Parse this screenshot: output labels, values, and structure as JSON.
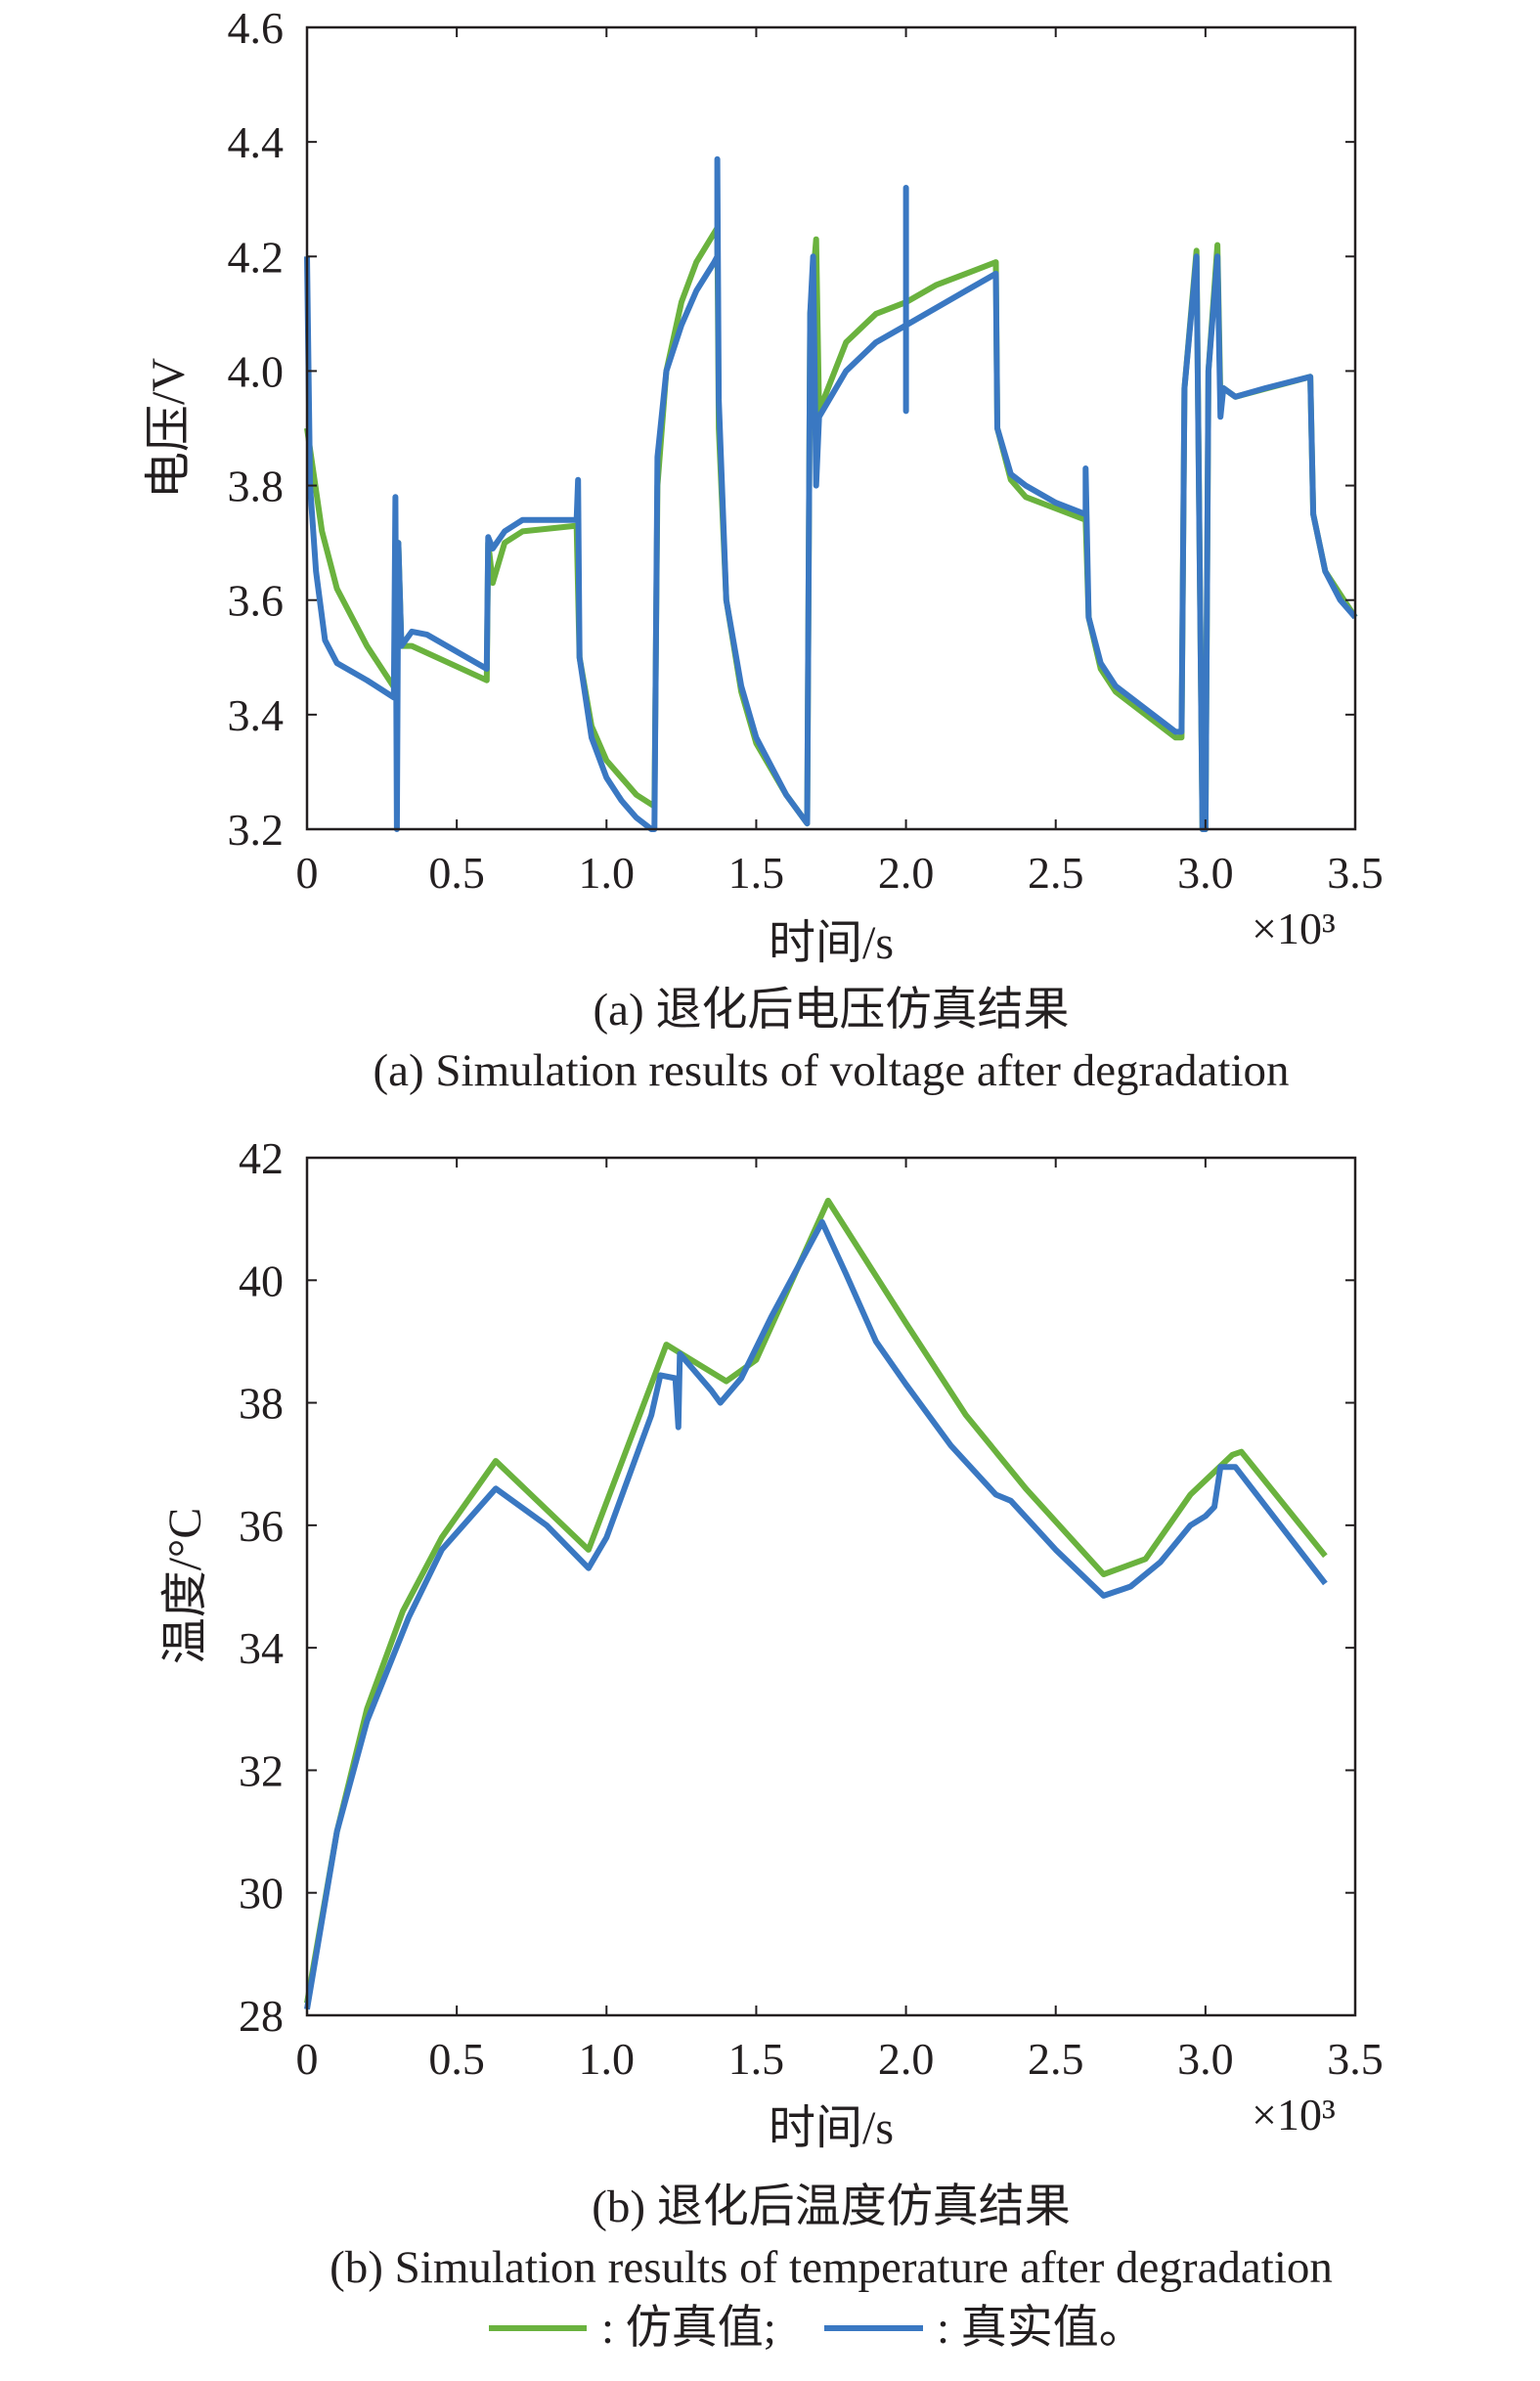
{
  "colors": {
    "simulated": "#6ab23e",
    "real": "#3a78c2",
    "axis": "#231f20"
  },
  "legend": {
    "simulated_label": ": 仿真值;",
    "real_label": ": 真实值。"
  },
  "chart_data": [
    {
      "type": "line",
      "title": "(a) 退化后电压仿真结果",
      "title_en": "(a) Simulation results of voltage after degradation",
      "xlabel": "时间/s",
      "x_multiplier": "×10³",
      "ylabel": "电压/V",
      "xlim": [
        0,
        3.5
      ],
      "ylim": [
        3.2,
        4.6
      ],
      "xticks": [
        "0",
        "0.5",
        "1.0",
        "1.5",
        "2.0",
        "2.5",
        "3.0",
        "3.5"
      ],
      "yticks": [
        "3.2",
        "3.4",
        "3.6",
        "3.8",
        "4.0",
        "4.2",
        "4.4",
        "4.6"
      ],
      "grid": false,
      "series": [
        {
          "name": "仿真值",
          "color_key": "simulated",
          "points": [
            [
              0,
              3.9
            ],
            [
              0.05,
              3.72
            ],
            [
              0.1,
              3.62
            ],
            [
              0.2,
              3.52
            ],
            [
              0.3,
              3.44
            ],
            [
              0.305,
              3.7
            ],
            [
              0.315,
              3.52
            ],
            [
              0.35,
              3.52
            ],
            [
              0.6,
              3.46
            ],
            [
              0.605,
              3.7
            ],
            [
              0.62,
              3.63
            ],
            [
              0.66,
              3.7
            ],
            [
              0.72,
              3.72
            ],
            [
              0.9,
              3.73
            ],
            [
              0.91,
              3.5
            ],
            [
              0.95,
              3.38
            ],
            [
              1.0,
              3.32
            ],
            [
              1.1,
              3.26
            ],
            [
              1.16,
              3.24
            ],
            [
              1.17,
              3.8
            ],
            [
              1.2,
              4.0
            ],
            [
              1.25,
              4.12
            ],
            [
              1.3,
              4.19
            ],
            [
              1.37,
              4.25
            ],
            [
              1.375,
              3.9
            ],
            [
              1.4,
              3.6
            ],
            [
              1.45,
              3.44
            ],
            [
              1.5,
              3.35
            ],
            [
              1.6,
              3.26
            ],
            [
              1.67,
              3.21
            ],
            [
              1.68,
              4.1
            ],
            [
              1.7,
              4.23
            ],
            [
              1.71,
              3.93
            ],
            [
              1.8,
              4.05
            ],
            [
              1.9,
              4.1
            ],
            [
              2.0,
              4.12
            ],
            [
              2.1,
              4.15
            ],
            [
              2.2,
              4.17
            ],
            [
              2.3,
              4.19
            ],
            [
              2.305,
              3.9
            ],
            [
              2.35,
              3.81
            ],
            [
              2.4,
              3.78
            ],
            [
              2.5,
              3.76
            ],
            [
              2.6,
              3.74
            ],
            [
              2.61,
              3.57
            ],
            [
              2.65,
              3.48
            ],
            [
              2.7,
              3.44
            ],
            [
              2.8,
              3.4
            ],
            [
              2.9,
              3.36
            ],
            [
              2.92,
              3.36
            ],
            [
              2.93,
              3.97
            ],
            [
              2.97,
              4.21
            ],
            [
              2.99,
              3.2
            ],
            [
              3.0,
              3.2
            ],
            [
              3.01,
              4.0
            ],
            [
              3.04,
              4.22
            ],
            [
              3.05,
              3.95
            ],
            [
              3.06,
              3.97
            ],
            [
              3.1,
              3.955
            ],
            [
              3.35,
              3.99
            ],
            [
              3.36,
              3.75
            ],
            [
              3.4,
              3.65
            ],
            [
              3.5,
              3.57
            ]
          ]
        },
        {
          "name": "真实值",
          "color_key": "real",
          "points": [
            [
              0,
              4.2
            ],
            [
              0.01,
              3.8
            ],
            [
              0.03,
              3.65
            ],
            [
              0.06,
              3.53
            ],
            [
              0.1,
              3.49
            ],
            [
              0.2,
              3.46
            ],
            [
              0.29,
              3.43
            ],
            [
              0.295,
              3.78
            ],
            [
              0.3,
              3.2
            ],
            [
              0.305,
              3.7
            ],
            [
              0.315,
              3.52
            ],
            [
              0.35,
              3.545
            ],
            [
              0.4,
              3.54
            ],
            [
              0.6,
              3.48
            ],
            [
              0.605,
              3.71
            ],
            [
              0.62,
              3.69
            ],
            [
              0.66,
              3.72
            ],
            [
              0.72,
              3.74
            ],
            [
              0.9,
              3.74
            ],
            [
              0.905,
              3.81
            ],
            [
              0.91,
              3.5
            ],
            [
              0.95,
              3.36
            ],
            [
              1.0,
              3.29
            ],
            [
              1.05,
              3.25
            ],
            [
              1.1,
              3.22
            ],
            [
              1.15,
              3.2
            ],
            [
              1.16,
              3.2
            ],
            [
              1.17,
              3.85
            ],
            [
              1.2,
              4.0
            ],
            [
              1.25,
              4.08
            ],
            [
              1.3,
              4.14
            ],
            [
              1.36,
              4.19
            ],
            [
              1.37,
              4.2
            ],
            [
              1.37,
              4.37
            ],
            [
              1.375,
              3.95
            ],
            [
              1.4,
              3.6
            ],
            [
              1.45,
              3.45
            ],
            [
              1.5,
              3.36
            ],
            [
              1.6,
              3.26
            ],
            [
              1.67,
              3.21
            ],
            [
              1.68,
              4.1
            ],
            [
              1.69,
              4.2
            ],
            [
              1.7,
              3.8
            ],
            [
              1.71,
              3.92
            ],
            [
              1.8,
              4.0
            ],
            [
              1.9,
              4.05
            ],
            [
              2.0,
              4.08
            ],
            [
              2.0,
              4.32
            ],
            [
              2.0,
              3.93
            ],
            [
              2.0,
              4.08
            ],
            [
              2.1,
              4.11
            ],
            [
              2.2,
              4.14
            ],
            [
              2.3,
              4.17
            ],
            [
              2.305,
              3.9
            ],
            [
              2.35,
              3.82
            ],
            [
              2.4,
              3.8
            ],
            [
              2.5,
              3.77
            ],
            [
              2.6,
              3.75
            ],
            [
              2.6,
              3.83
            ],
            [
              2.61,
              3.57
            ],
            [
              2.65,
              3.49
            ],
            [
              2.7,
              3.45
            ],
            [
              2.8,
              3.41
            ],
            [
              2.9,
              3.37
            ],
            [
              2.92,
              3.37
            ],
            [
              2.93,
              3.97
            ],
            [
              2.97,
              4.2
            ],
            [
              2.99,
              3.2
            ],
            [
              3.0,
              3.2
            ],
            [
              3.01,
              4.0
            ],
            [
              3.04,
              4.2
            ],
            [
              3.05,
              3.92
            ],
            [
              3.06,
              3.97
            ],
            [
              3.1,
              3.955
            ],
            [
              3.2,
              3.97
            ],
            [
              3.35,
              3.99
            ],
            [
              3.36,
              3.75
            ],
            [
              3.4,
              3.65
            ],
            [
              3.45,
              3.6
            ],
            [
              3.5,
              3.57
            ]
          ]
        }
      ]
    },
    {
      "type": "line",
      "title": "(b) 退化后温度仿真结果",
      "title_en": "(b) Simulation results of temperature after degradation",
      "xlabel": "时间/s",
      "x_multiplier": "×10³",
      "ylabel": "温度/°C",
      "xlim": [
        0,
        3.5
      ],
      "ylim": [
        28,
        42
      ],
      "xticks": [
        "0",
        "0.5",
        "1.0",
        "1.5",
        "2.0",
        "2.5",
        "3.0",
        "3.5"
      ],
      "yticks": [
        "28",
        "30",
        "32",
        "34",
        "36",
        "38",
        "40",
        "42"
      ],
      "grid": false,
      "series": [
        {
          "name": "仿真值",
          "color_key": "simulated",
          "points": [
            [
              0,
              28.2
            ],
            [
              0.1,
              31
            ],
            [
              0.2,
              33
            ],
            [
              0.32,
              34.6
            ],
            [
              0.45,
              35.8
            ],
            [
              0.63,
              37.05
            ],
            [
              0.94,
              35.6
            ],
            [
              1.2,
              38.95
            ],
            [
              1.25,
              38.8
            ],
            [
              1.4,
              38.35
            ],
            [
              1.5,
              38.7
            ],
            [
              1.74,
              41.3
            ],
            [
              2.0,
              39.3
            ],
            [
              2.2,
              37.8
            ],
            [
              2.4,
              36.6
            ],
            [
              2.66,
              35.2
            ],
            [
              2.8,
              35.45
            ],
            [
              2.95,
              36.5
            ],
            [
              3.09,
              37.15
            ],
            [
              3.12,
              37.2
            ],
            [
              3.4,
              35.5
            ]
          ]
        },
        {
          "name": "真实值",
          "color_key": "real",
          "points": [
            [
              0,
              28.1
            ],
            [
              0.1,
              31
            ],
            [
              0.2,
              32.8
            ],
            [
              0.34,
              34.5
            ],
            [
              0.45,
              35.6
            ],
            [
              0.63,
              36.6
            ],
            [
              0.8,
              36.0
            ],
            [
              0.94,
              35.3
            ],
            [
              1.0,
              35.8
            ],
            [
              1.15,
              37.8
            ],
            [
              1.18,
              38.45
            ],
            [
              1.23,
              38.4
            ],
            [
              1.24,
              37.6
            ],
            [
              1.245,
              38.8
            ],
            [
              1.35,
              38.2
            ],
            [
              1.38,
              38.0
            ],
            [
              1.45,
              38.4
            ],
            [
              1.55,
              39.4
            ],
            [
              1.72,
              40.95
            ],
            [
              1.8,
              40.1
            ],
            [
              1.9,
              39.0
            ],
            [
              2.0,
              38.3
            ],
            [
              2.15,
              37.3
            ],
            [
              2.3,
              36.5
            ],
            [
              2.35,
              36.4
            ],
            [
              2.5,
              35.6
            ],
            [
              2.66,
              34.85
            ],
            [
              2.75,
              35.0
            ],
            [
              2.85,
              35.4
            ],
            [
              2.95,
              36.0
            ],
            [
              3.0,
              36.15
            ],
            [
              3.03,
              36.3
            ],
            [
              3.05,
              36.95
            ],
            [
              3.1,
              36.95
            ],
            [
              3.4,
              35.05
            ]
          ]
        }
      ]
    }
  ]
}
